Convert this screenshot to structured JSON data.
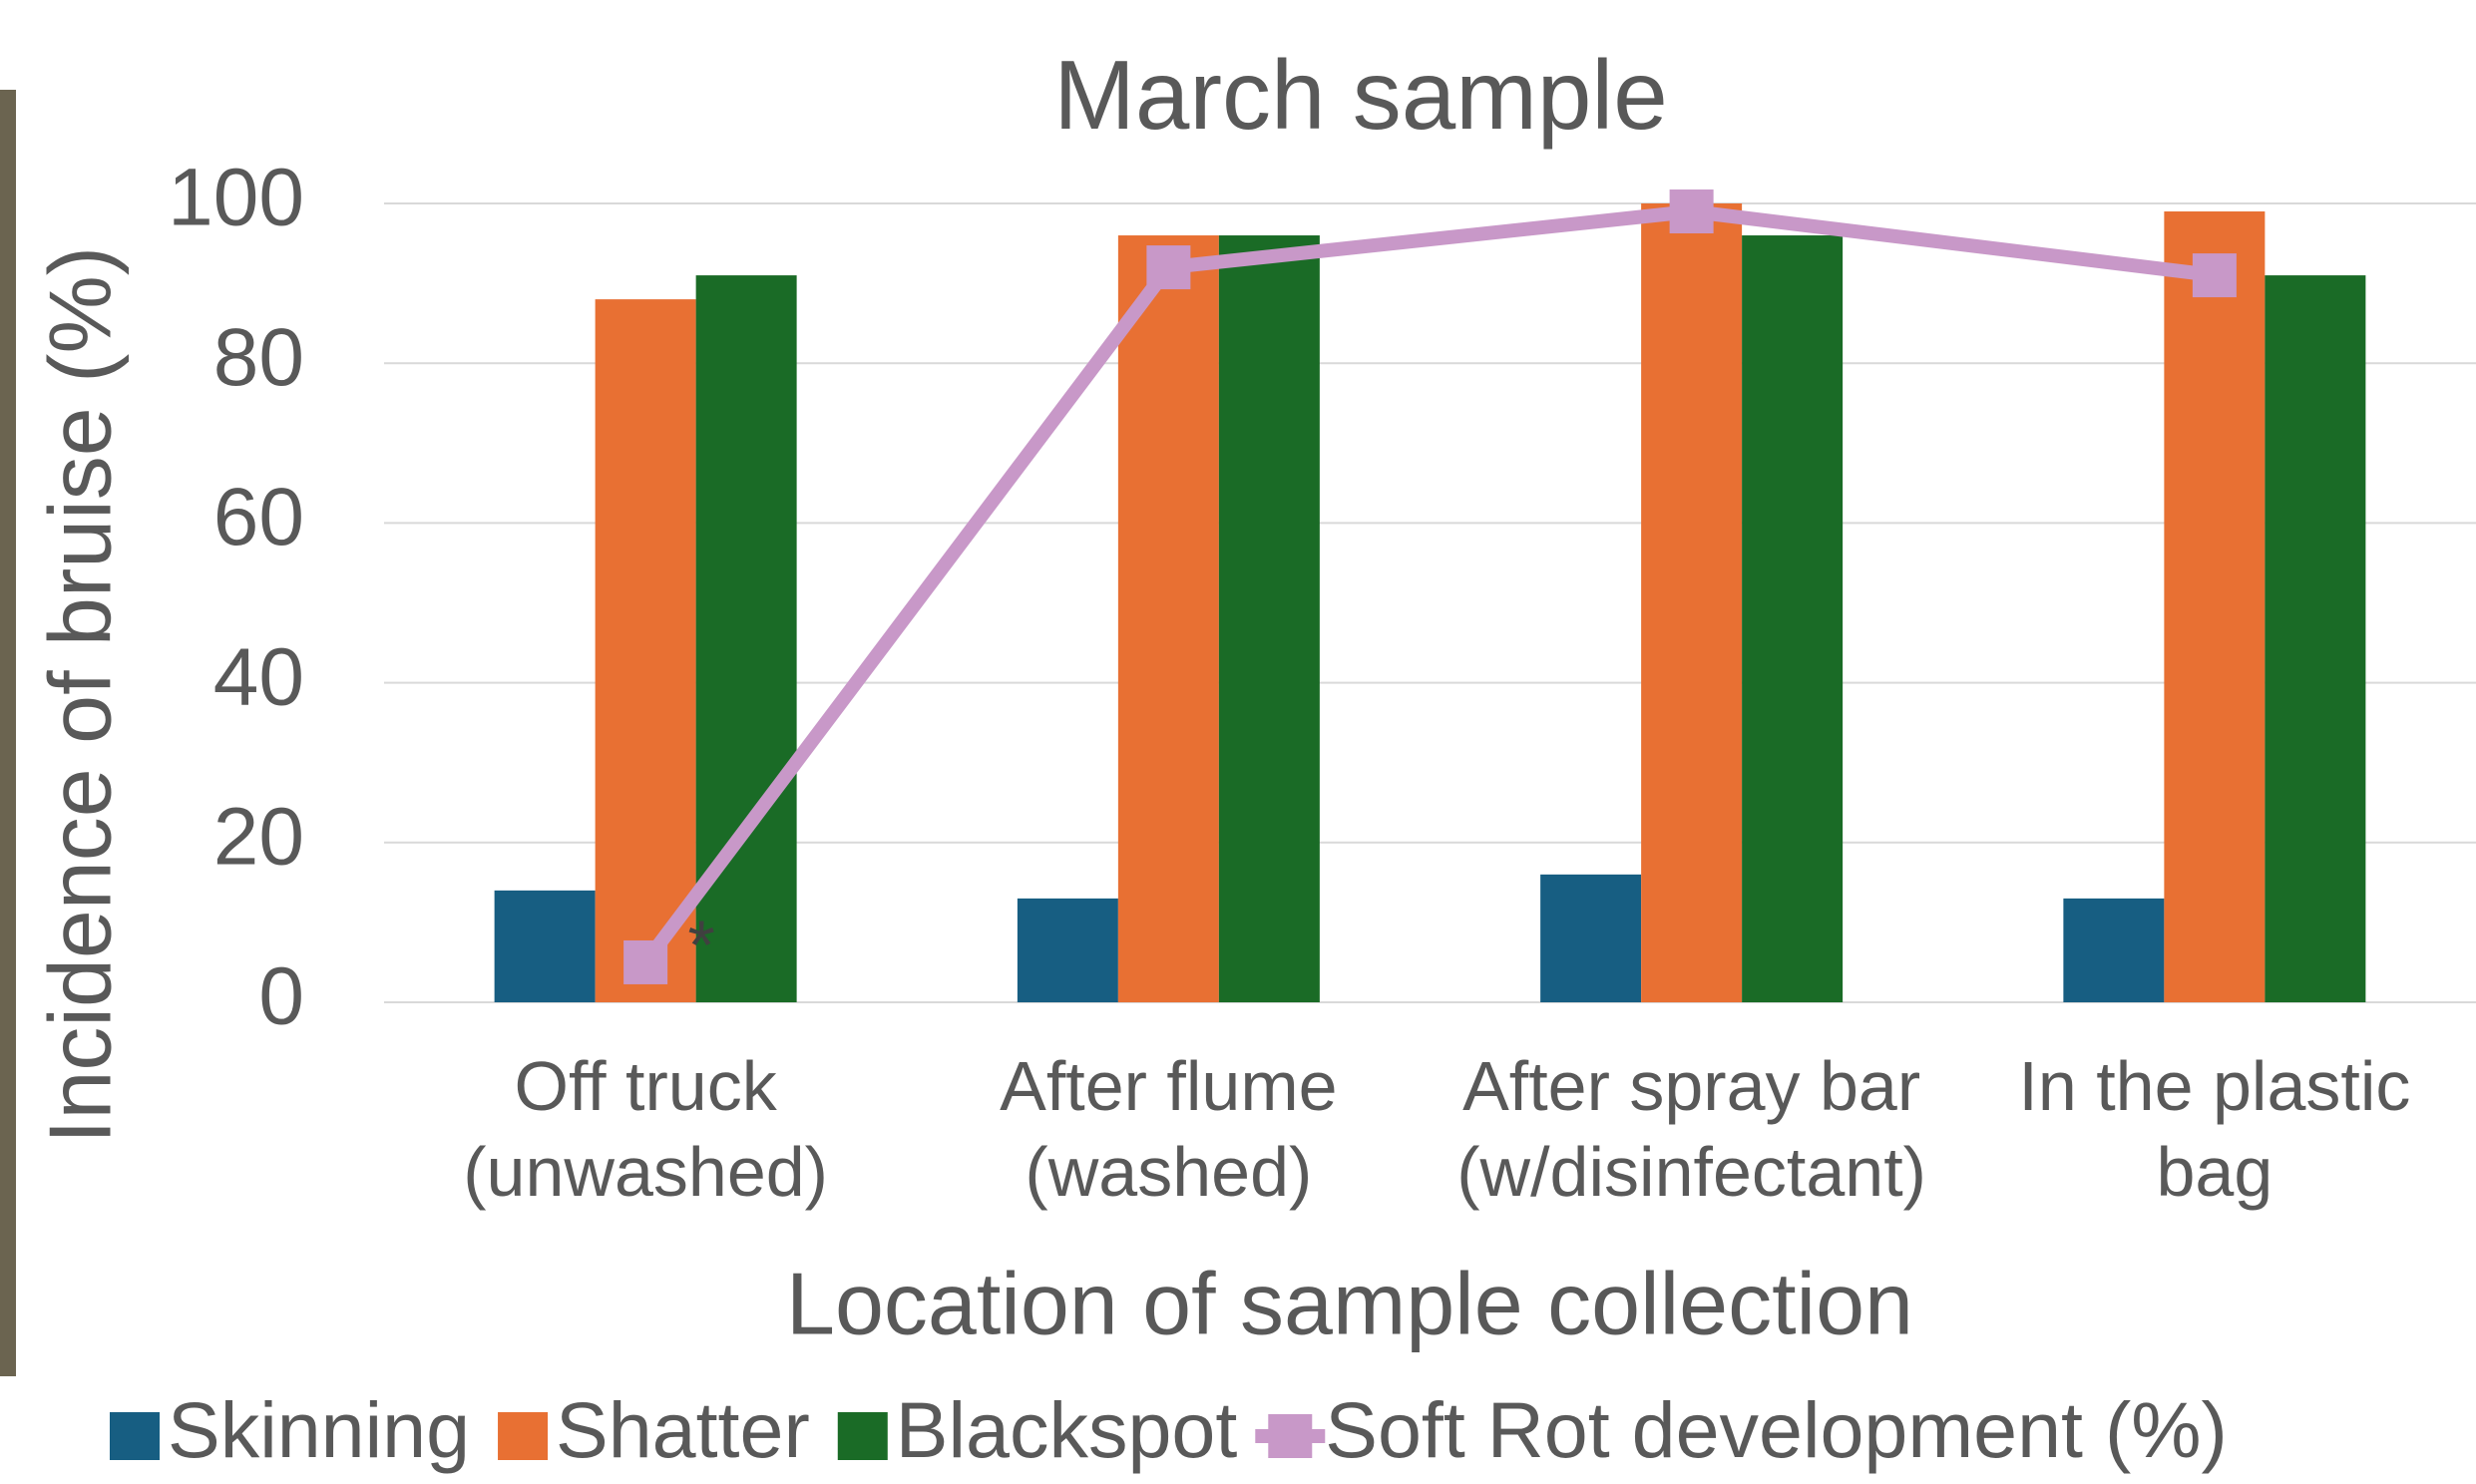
{
  "chart_data": {
    "type": "bar",
    "title": "March sample",
    "x_label": "Location of sample collection",
    "y_label": "Incidence of bruise (%)",
    "categories": [
      [
        "Off truck",
        "(unwashed)"
      ],
      [
        "After flume",
        "(washed)"
      ],
      [
        "After spray bar",
        "(w/disinfectant)"
      ],
      [
        "In the plastic",
        "bag"
      ]
    ],
    "series": [
      {
        "name": "Skinning",
        "color": "#175e82",
        "values": [
          14,
          13,
          16,
          13
        ]
      },
      {
        "name": "Shatter",
        "color": "#e87033",
        "values": [
          88,
          96,
          100,
          99
        ]
      },
      {
        "name": "Blackspot",
        "color": "#1a6b26",
        "values": [
          91,
          96,
          96,
          91
        ]
      },
      {
        "name": "Soft Rot development (%)",
        "color": "#c898c8",
        "type": "line",
        "values": [
          5,
          92,
          99,
          91
        ]
      }
    ],
    "annotations": [
      {
        "text": "*",
        "category": 0
      }
    ],
    "ylim": [
      0,
      100
    ],
    "yticks": [
      0,
      20,
      40,
      60,
      80,
      100
    ],
    "grid": true,
    "legend": "bottom"
  }
}
